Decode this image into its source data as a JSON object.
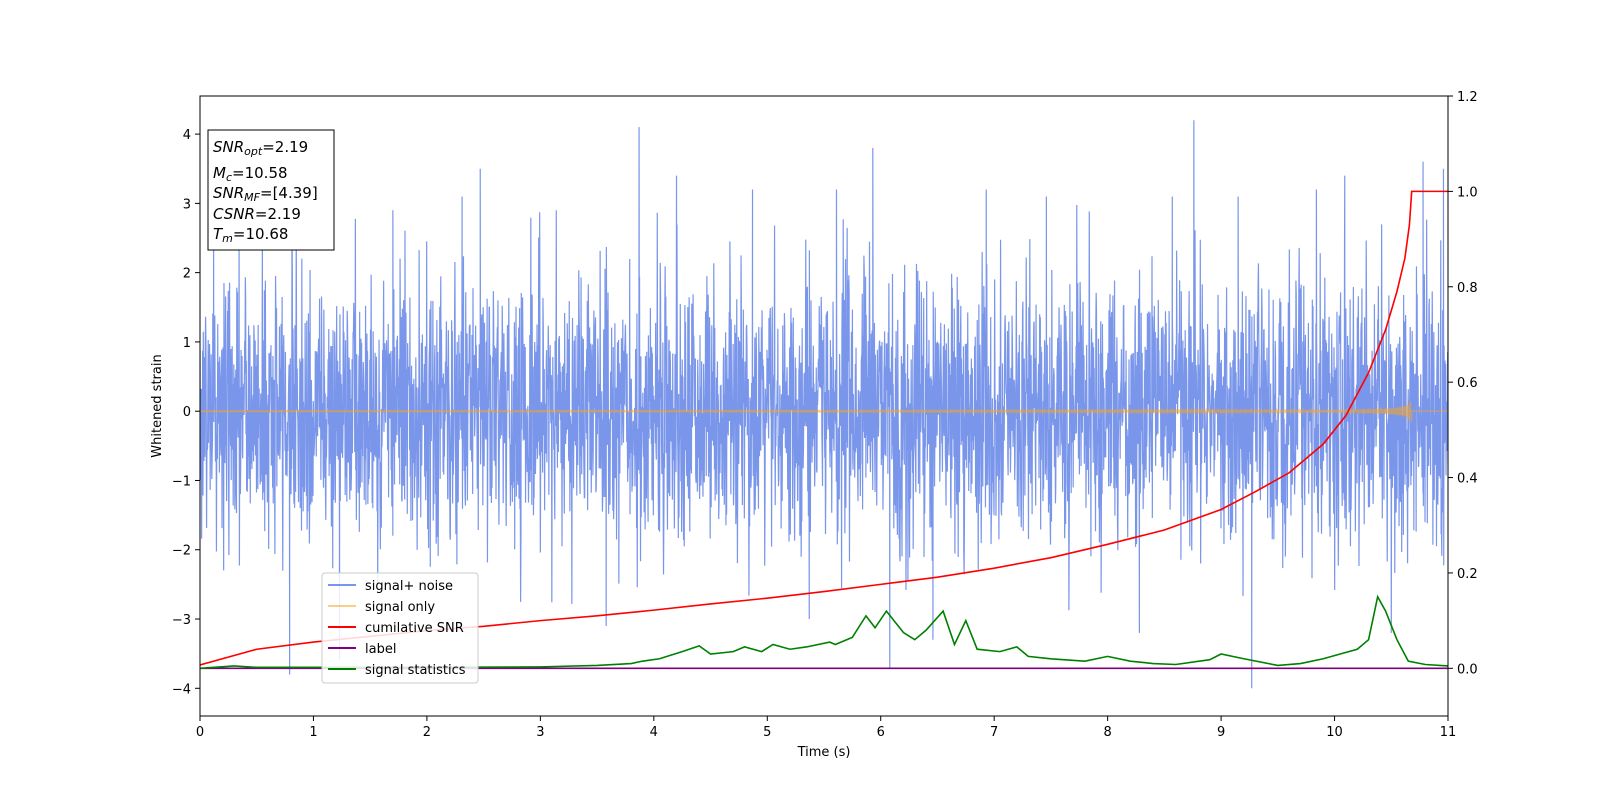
{
  "chart_data": {
    "type": "line",
    "xlabel": "Time (s)",
    "ylabel": "Whitened strain",
    "xlim": [
      0,
      11
    ],
    "ylim_left": [
      -4.4,
      4.55
    ],
    "ylim_right": [
      -0.1,
      1.2
    ],
    "x_ticks": [
      "0",
      "1",
      "2",
      "3",
      "4",
      "5",
      "6",
      "7",
      "8",
      "9",
      "10",
      "11"
    ],
    "y_ticks_left": [
      "−4",
      "−3",
      "−2",
      "−1",
      "0",
      "1",
      "2",
      "3",
      "4"
    ],
    "y_ticks_right": [
      "0.0",
      "0.2",
      "0.4",
      "0.6",
      "0.8",
      "1.0",
      "1.2"
    ],
    "grid": false,
    "legend_position": "lower-left",
    "info_box": {
      "position": "top-left",
      "lines": [
        {
          "sym": "SNR",
          "sub": "opt",
          "value": "=2.19"
        },
        {
          "sym": "M",
          "sub": "c",
          "value": "=10.58"
        },
        {
          "sym": "SNR",
          "sub": "MF",
          "value": "=[4.39]"
        },
        {
          "sym": "CSNR",
          "sub": "",
          "value": "=2.19"
        },
        {
          "sym": "T",
          "sub": "m",
          "value": "=10.68"
        }
      ]
    },
    "series": [
      {
        "name": "signal+ noise",
        "axis": "left",
        "color": "#4169e1",
        "alpha": 0.7,
        "description_type": "noise",
        "std": 0.95,
        "peaks_x": [
          0.12,
          0.55,
          0.79,
          1.23,
          1.7,
          2.31,
          2.47,
          2.68,
          3.14,
          3.58,
          3.87,
          4.2,
          4.87,
          5.37,
          5.61,
          5.93,
          6.08,
          6.46,
          6.93,
          7.46,
          8.28,
          8.57,
          8.76,
          9.15,
          9.27,
          9.84,
          10.09,
          10.5,
          10.78,
          10.96
        ],
        "peaks_y": [
          2.6,
          2.8,
          -3.8,
          -3.6,
          2.9,
          3.1,
          3.5,
          0.8,
          2.9,
          -3.1,
          4.1,
          3.4,
          3.2,
          -3.0,
          3.2,
          3.8,
          -3.7,
          -3.3,
          3.2,
          3.1,
          -3.2,
          3.1,
          4.2,
          3.1,
          -4.0,
          3.2,
          3.4,
          -3.2,
          3.6,
          3.5
        ]
      },
      {
        "name": "signal only",
        "axis": "left",
        "color": "#f5a623",
        "alpha": 0.55,
        "description_type": "chirp",
        "merger_time": 10.68,
        "peak_amplitude": 0.35
      },
      {
        "name": "cumilative SNR",
        "axis": "right",
        "color": "#ff0000",
        "x": [
          0,
          0.5,
          1,
          1.5,
          2,
          2.5,
          3,
          3.5,
          4,
          4.5,
          5,
          5.5,
          6,
          6.5,
          7,
          7.5,
          8,
          8.5,
          9,
          9.3,
          9.6,
          9.9,
          10.1,
          10.3,
          10.45,
          10.55,
          10.62,
          10.66,
          10.68,
          11
        ],
        "y": [
          0.007,
          0.04,
          0.055,
          0.067,
          0.079,
          0.088,
          0.1,
          0.11,
          0.122,
          0.135,
          0.147,
          0.161,
          0.176,
          0.191,
          0.21,
          0.232,
          0.26,
          0.29,
          0.333,
          0.37,
          0.41,
          0.47,
          0.53,
          0.62,
          0.71,
          0.79,
          0.86,
          0.93,
          1.0,
          1.0
        ]
      },
      {
        "name": "label",
        "axis": "right",
        "color": "#800080",
        "x": [
          0,
          11
        ],
        "y": [
          0,
          0
        ]
      },
      {
        "name": "signal statistics",
        "axis": "right",
        "color": "#008000",
        "x": [
          0,
          0.3,
          0.5,
          1,
          2,
          3,
          3.5,
          3.8,
          3.9,
          4.05,
          4.25,
          4.4,
          4.5,
          4.7,
          4.8,
          4.95,
          5.05,
          5.2,
          5.35,
          5.55,
          5.6,
          5.75,
          5.87,
          5.95,
          6.05,
          6.2,
          6.3,
          6.4,
          6.55,
          6.65,
          6.75,
          6.85,
          7.05,
          7.2,
          7.3,
          7.5,
          7.8,
          8.0,
          8.2,
          8.4,
          8.6,
          8.9,
          9.0,
          9.2,
          9.5,
          9.7,
          9.9,
          10.05,
          10.2,
          10.3,
          10.38,
          10.45,
          10.55,
          10.65,
          10.8,
          11
        ],
        "y": [
          0.0,
          0.005,
          0.002,
          0.002,
          0.002,
          0.003,
          0.006,
          0.01,
          0.015,
          0.02,
          0.035,
          0.047,
          0.03,
          0.035,
          0.045,
          0.035,
          0.05,
          0.04,
          0.045,
          0.055,
          0.05,
          0.065,
          0.11,
          0.085,
          0.12,
          0.075,
          0.06,
          0.08,
          0.12,
          0.05,
          0.1,
          0.04,
          0.035,
          0.045,
          0.025,
          0.02,
          0.015,
          0.025,
          0.015,
          0.01,
          0.008,
          0.018,
          0.03,
          0.02,
          0.006,
          0.01,
          0.02,
          0.03,
          0.04,
          0.06,
          0.15,
          0.12,
          0.06,
          0.015,
          0.008,
          0.005
        ]
      }
    ]
  }
}
